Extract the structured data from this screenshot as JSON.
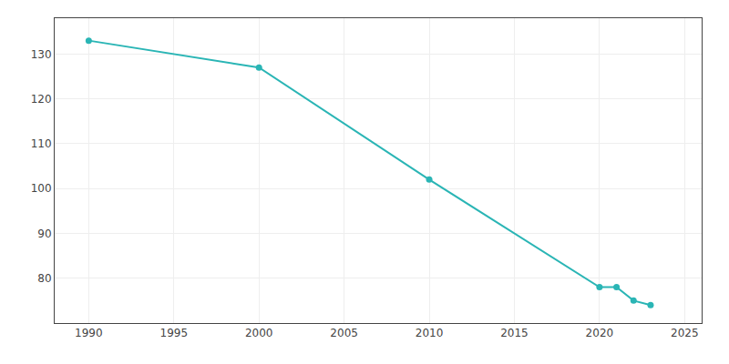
{
  "chart_data": {
    "type": "line",
    "x": [
      1990,
      2000,
      2010,
      2020,
      2021,
      2022,
      2023
    ],
    "values": [
      133,
      127,
      102,
      78,
      78,
      75,
      74
    ],
    "color": "#2ab5b5",
    "marker": "circle",
    "xlim": [
      1988,
      2026
    ],
    "ylim": [
      70,
      138
    ],
    "xticks": [
      1990,
      1995,
      2000,
      2005,
      2010,
      2015,
      2020,
      2025
    ],
    "yticks": [
      80,
      90,
      100,
      110,
      120,
      130
    ],
    "grid": true
  }
}
